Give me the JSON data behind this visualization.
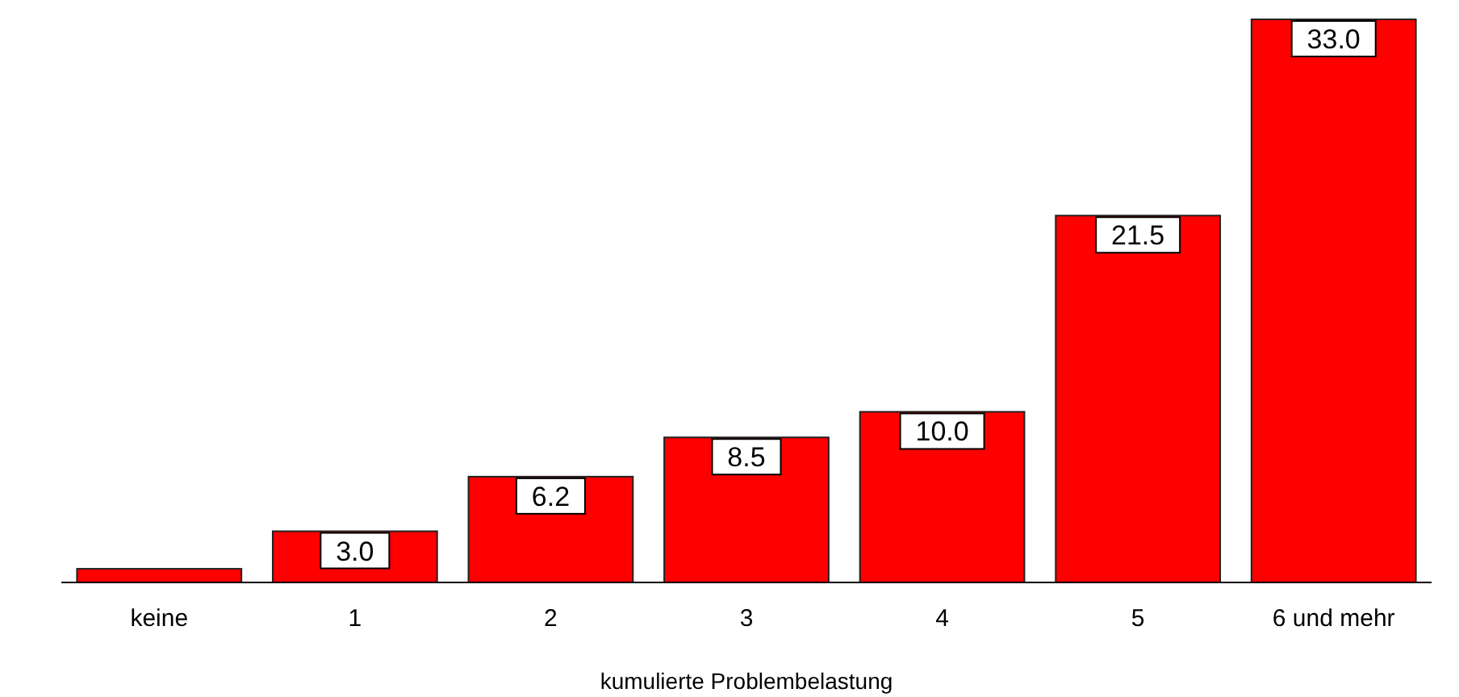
{
  "chart_data": {
    "type": "bar",
    "xlabel": "kumulierte Problembelastung",
    "categories": [
      "keine",
      "1",
      "2",
      "3",
      "4",
      "5",
      "6 und mehr"
    ],
    "values": [
      0.8,
      3.0,
      6.2,
      8.5,
      10.0,
      21.5,
      33.0
    ],
    "value_labels": [
      null,
      "3.0",
      "6.2",
      "8.5",
      "10.0",
      "21.5",
      "33.0"
    ],
    "color": "#ff0000"
  }
}
